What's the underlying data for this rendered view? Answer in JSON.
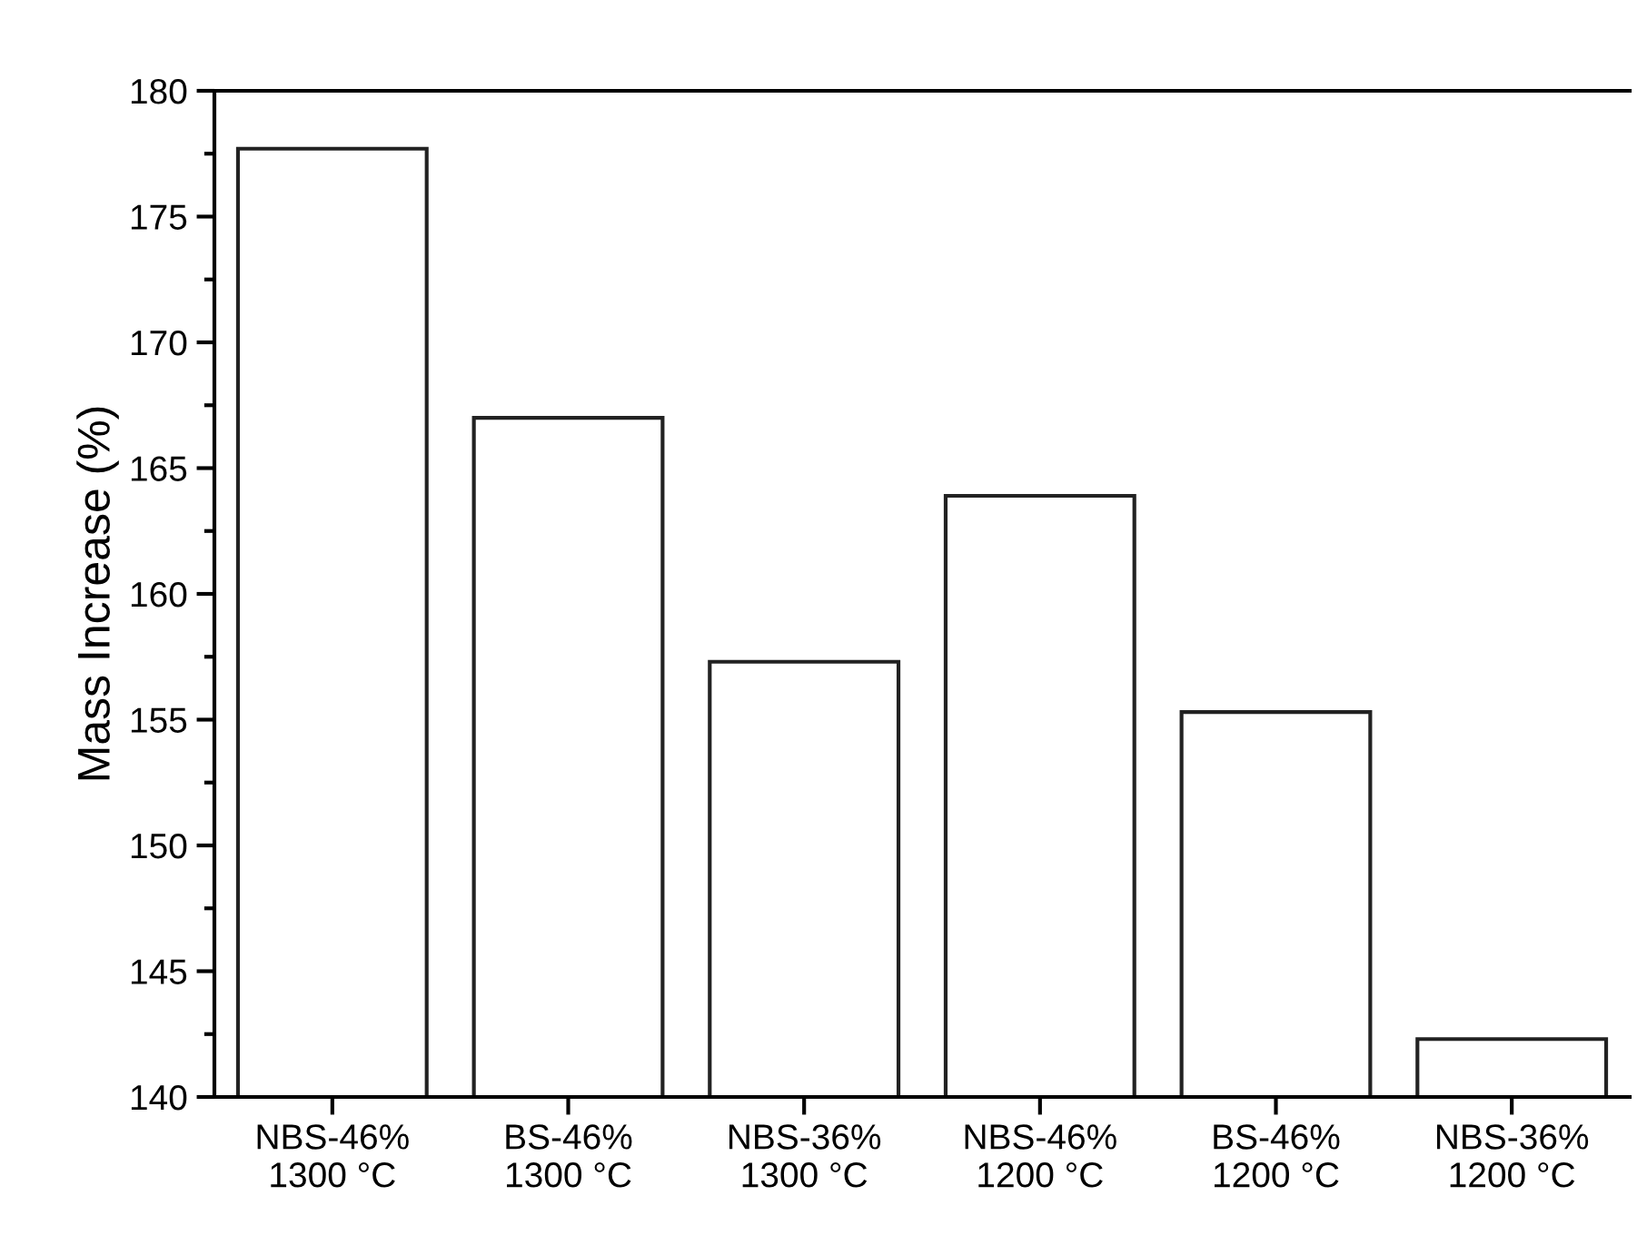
{
  "chart_data": {
    "type": "bar",
    "ylabel": "Mass Increase (%)",
    "categories": [
      "NBS-46%\n1300 °C",
      "BS-46%\n1300 °C",
      "NBS-36%\n1300 °C",
      "NBS-46%\n1200 °C",
      "BS-46%\n1200 °C",
      "NBS-36%\n1200 °C"
    ],
    "values": [
      177.7,
      167.0,
      157.3,
      163.9,
      155.3,
      142.3
    ],
    "color": "#ffffff",
    "ylim": [
      140,
      180
    ],
    "yticks": [
      140,
      {
        "value": 142.5,
        "label": null
      },
      145,
      {
        "value": 147.5,
        "label": null
      },
      150,
      {
        "value": 152.5,
        "label": null
      },
      155,
      {
        "value": 157.5,
        "label": null
      },
      160,
      {
        "value": 162.5,
        "label": null
      },
      165,
      {
        "value": 167.5,
        "label": null
      },
      170,
      {
        "value": 172.5,
        "label": null
      },
      175,
      {
        "value": 177.5,
        "label": null
      },
      180
    ],
    "grid": false,
    "legend": false
  }
}
